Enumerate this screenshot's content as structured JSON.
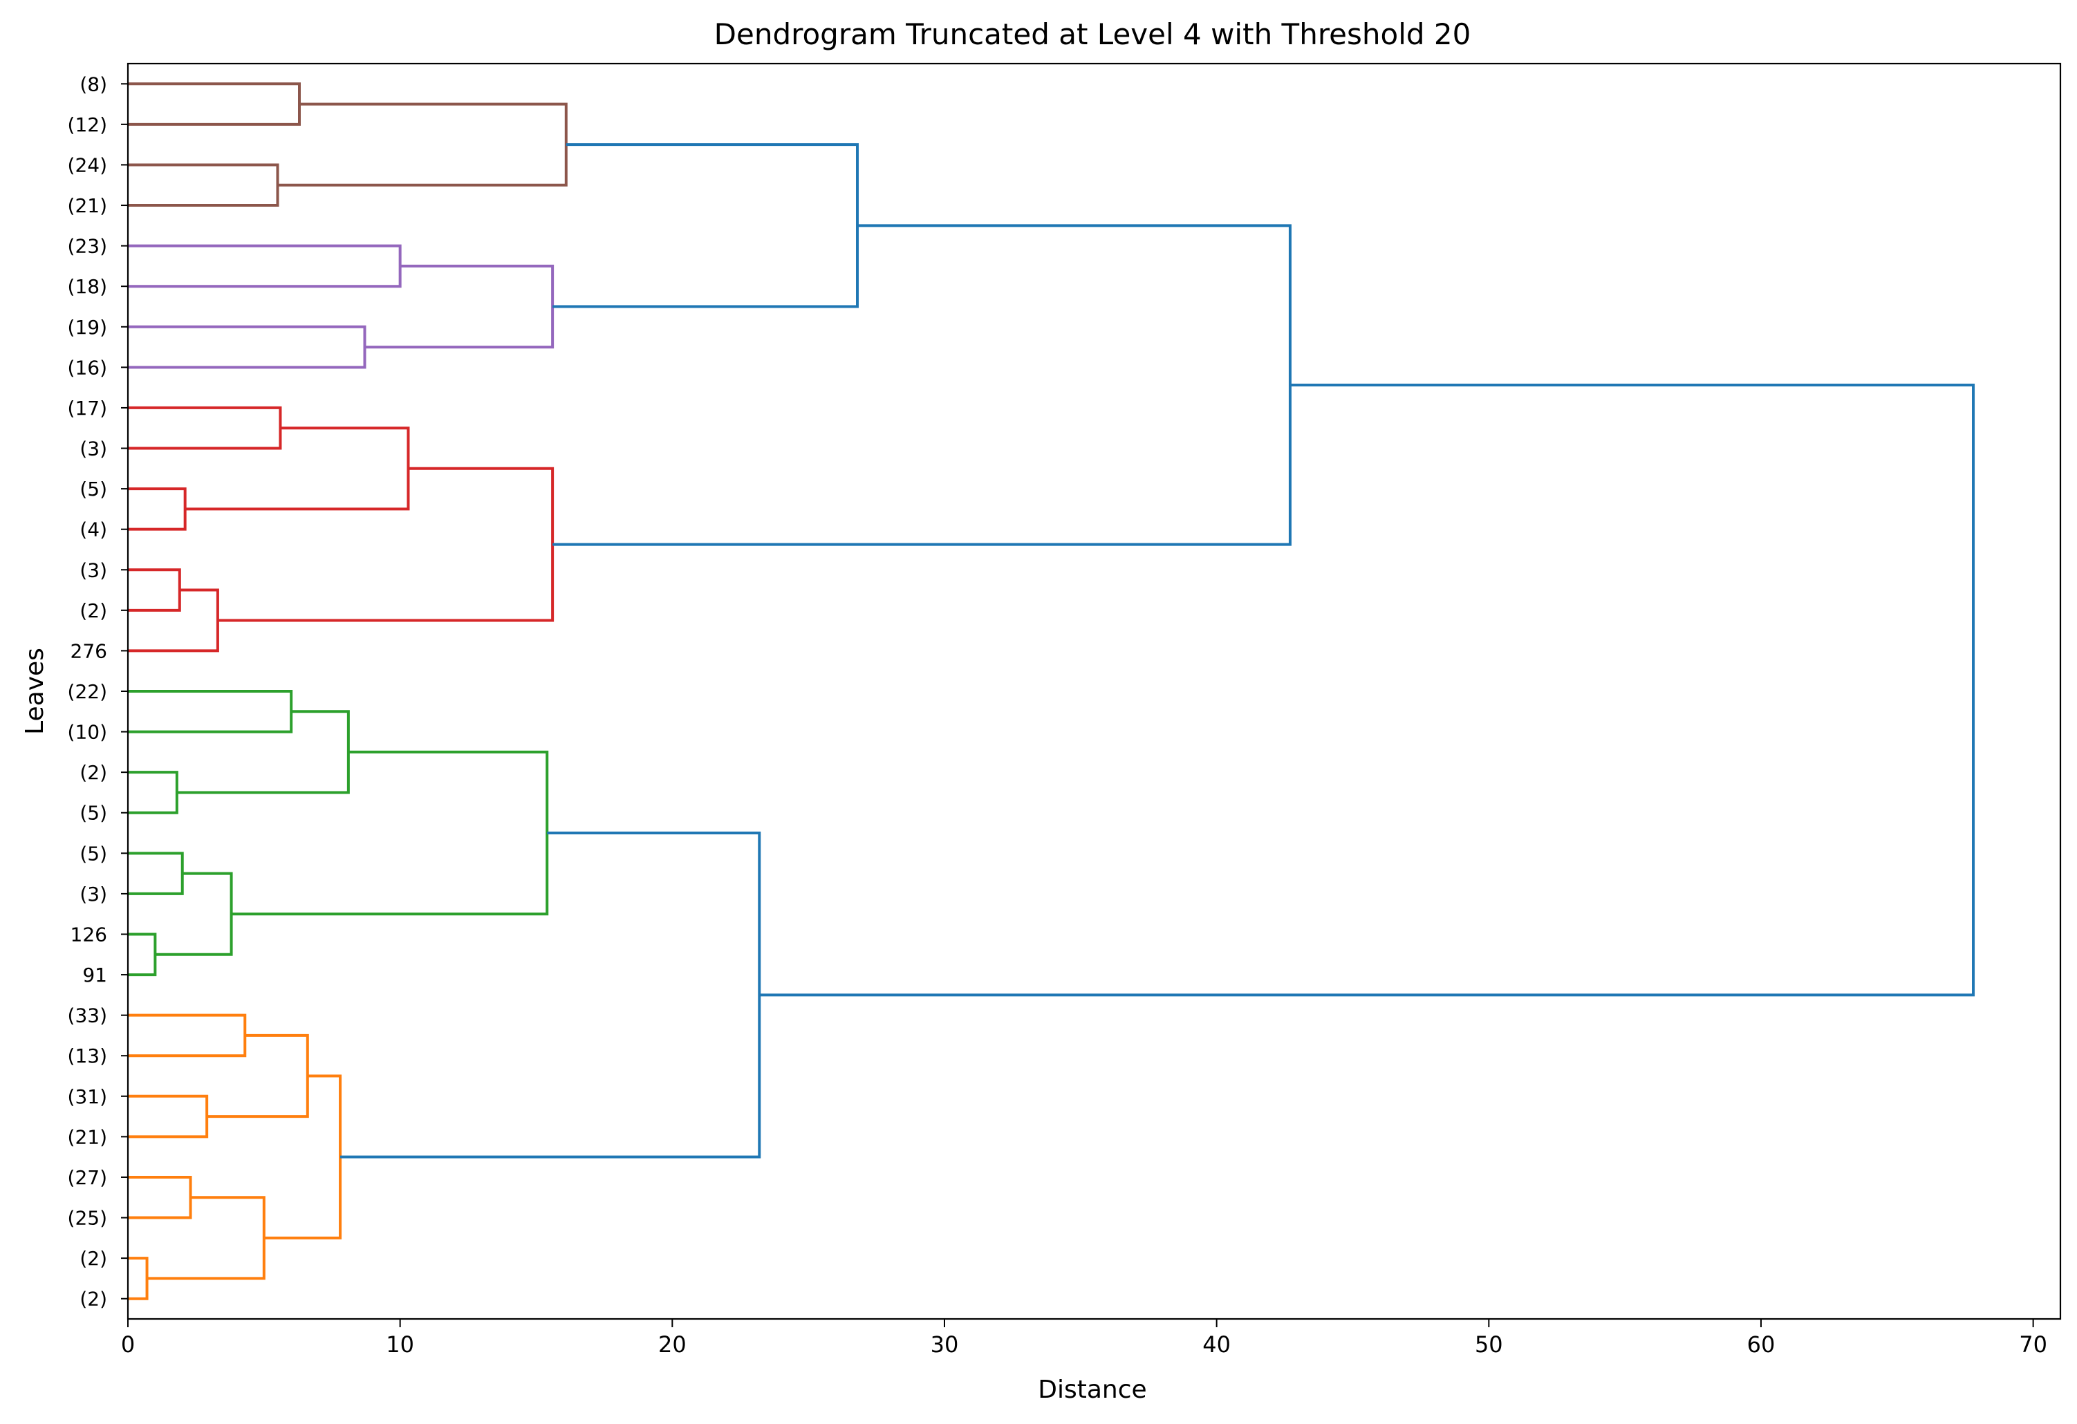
{
  "chart_data": {
    "type": "dendrogram",
    "title": "Dendrogram Truncated at Level 4 with Threshold 20",
    "xlabel": "Distance",
    "ylabel": "Leaves",
    "orientation": "right",
    "xlim": [
      0,
      71
    ],
    "x_ticks": [
      0,
      10,
      20,
      30,
      40,
      50,
      60,
      70
    ],
    "grid": false,
    "leaves": [
      "(2)",
      "(2)",
      "(25)",
      "(27)",
      "(21)",
      "(31)",
      "(13)",
      "(33)",
      "91",
      "126",
      "(3)",
      "(5)",
      "(5)",
      "(2)",
      "(10)",
      "(22)",
      "276",
      "(2)",
      "(3)",
      "(4)",
      "(5)",
      "(3)",
      "(17)",
      "(16)",
      "(19)",
      "(18)",
      "(23)",
      "(21)",
      "(24)",
      "(12)",
      "(8)"
    ],
    "colors": {
      "above_threshold": "#1f77b4",
      "orange": "#ff7f0e",
      "green": "#2ca02c",
      "red": "#d62728",
      "purple": "#9467bd",
      "brown": "#8c564b"
    },
    "links": [
      {
        "left": "L0",
        "right": "L1",
        "height": 0.7,
        "color": "orange"
      },
      {
        "left": "L2",
        "right": "L3",
        "height": 2.3,
        "color": "orange"
      },
      {
        "left": "M0",
        "right": "M1",
        "height": 5.0,
        "color": "orange"
      },
      {
        "left": "L4",
        "right": "L5",
        "height": 2.9,
        "color": "orange"
      },
      {
        "left": "L6",
        "right": "L7",
        "height": 4.3,
        "color": "orange"
      },
      {
        "left": "M3",
        "right": "M4",
        "height": 6.6,
        "color": "orange"
      },
      {
        "left": "M2",
        "right": "M5",
        "height": 7.8,
        "color": "orange"
      },
      {
        "left": "L8",
        "right": "L9",
        "height": 1.0,
        "color": "green"
      },
      {
        "left": "L10",
        "right": "L11",
        "height": 2.0,
        "color": "green"
      },
      {
        "left": "M7",
        "right": "M8",
        "height": 3.8,
        "color": "green"
      },
      {
        "left": "L12",
        "right": "L13",
        "height": 1.8,
        "color": "green"
      },
      {
        "left": "L14",
        "right": "L15",
        "height": 6.0,
        "color": "green"
      },
      {
        "left": "M10",
        "right": "M11",
        "height": 8.1,
        "color": "green"
      },
      {
        "left": "M9",
        "right": "M12",
        "height": 15.4,
        "color": "green"
      },
      {
        "left": "M6",
        "right": "M13",
        "height": 23.2,
        "color": "above_threshold"
      },
      {
        "left": "L17",
        "right": "L18",
        "height": 1.9,
        "color": "red"
      },
      {
        "left": "L16",
        "right": "M15",
        "height": 3.3,
        "color": "red"
      },
      {
        "left": "L19",
        "right": "L20",
        "height": 2.1,
        "color": "red"
      },
      {
        "left": "L21",
        "right": "L22",
        "height": 5.6,
        "color": "red"
      },
      {
        "left": "M17",
        "right": "M18",
        "height": 10.3,
        "color": "red"
      },
      {
        "left": "M16",
        "right": "M19",
        "height": 15.6,
        "color": "red"
      },
      {
        "left": "L23",
        "right": "L24",
        "height": 8.7,
        "color": "purple"
      },
      {
        "left": "L25",
        "right": "L26",
        "height": 10.0,
        "color": "purple"
      },
      {
        "left": "M21",
        "right": "M22",
        "height": 15.6,
        "color": "purple"
      },
      {
        "left": "L27",
        "right": "L28",
        "height": 5.5,
        "color": "brown"
      },
      {
        "left": "L29",
        "right": "L30",
        "height": 6.3,
        "color": "brown"
      },
      {
        "left": "M24",
        "right": "M25",
        "height": 16.1,
        "color": "brown"
      },
      {
        "left": "M23",
        "right": "M26",
        "height": 26.8,
        "color": "above_threshold"
      },
      {
        "left": "M20",
        "right": "M27",
        "height": 42.7,
        "color": "above_threshold"
      },
      {
        "left": "M14",
        "right": "M28",
        "height": 67.8,
        "color": "above_threshold"
      }
    ]
  }
}
